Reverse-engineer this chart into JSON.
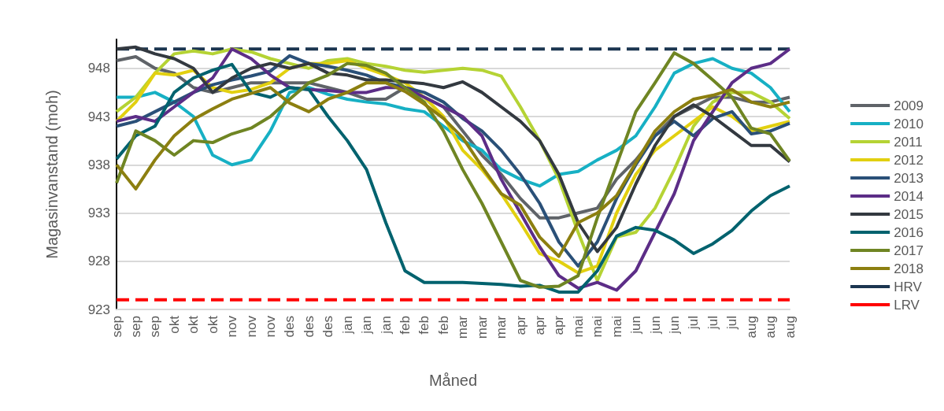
{
  "chart_data": {
    "type": "line",
    "xlabel": "Måned",
    "ylabel": "Magasinvanstand (moh)",
    "categories": [
      "sep",
      "sep",
      "sep",
      "okt",
      "okt",
      "okt",
      "nov",
      "nov",
      "nov",
      "des",
      "des",
      "des",
      "jan",
      "jan",
      "jan",
      "feb",
      "feb",
      "feb",
      "mar",
      "mar",
      "mar",
      "apr",
      "apr",
      "apr",
      "mai",
      "mai",
      "mai",
      "jun",
      "jun",
      "jun",
      "jul",
      "jul",
      "jul",
      "aug",
      "aug",
      "aug"
    ],
    "ylim": [
      923,
      951
    ],
    "yticks": [
      923,
      928,
      933,
      938,
      943,
      948
    ],
    "grid": "y",
    "legend": "right",
    "marker": "none",
    "line_style": "solid",
    "series": [
      {
        "name": "2009",
        "color": "#5f6368",
        "values": [
          948.8,
          949.2,
          948,
          947.5,
          946,
          945.5,
          946,
          946.5,
          946.5,
          946.5,
          946.5,
          946,
          945.5,
          944.8,
          944.8,
          946,
          945,
          944,
          941.5,
          939,
          937,
          934.5,
          932.5,
          932.5,
          933,
          933.5,
          936.5,
          938.5,
          941,
          943,
          944,
          945,
          945,
          944.5,
          944.5,
          945
        ]
      },
      {
        "name": "2010",
        "color": "#17b0c4",
        "values": [
          945,
          945,
          945.5,
          944.5,
          943,
          939,
          938,
          938.5,
          941.5,
          945.5,
          946,
          945.3,
          944.8,
          944.5,
          944.3,
          943.8,
          943.5,
          942,
          940.5,
          939.5,
          937.5,
          936.5,
          935.8,
          937,
          937.3,
          938.5,
          939.5,
          941,
          944,
          947.5,
          948.5,
          949,
          948,
          947.5,
          946,
          943.5
        ]
      },
      {
        "name": "2011",
        "color": "#b5d334",
        "values": [
          943.5,
          945,
          947.5,
          949.5,
          949.8,
          949.5,
          950,
          949.7,
          949,
          948.5,
          948,
          948.8,
          949,
          948.5,
          948.2,
          947.8,
          947.6,
          947.8,
          948,
          947.8,
          947.2,
          944,
          940.5,
          936.5,
          931,
          926,
          930.5,
          931,
          933.5,
          937.5,
          942,
          944.5,
          945.5,
          945.5,
          944.5,
          942.8
        ]
      },
      {
        "name": "2012",
        "color": "#e2d010",
        "values": [
          942.5,
          944.5,
          947.5,
          947.3,
          947.8,
          946,
          945.5,
          945.8,
          946.5,
          948,
          948.5,
          948.5,
          948.8,
          948,
          947.3,
          946.5,
          945,
          943,
          939.5,
          937.5,
          935,
          932,
          928.8,
          928,
          926.8,
          927.5,
          933,
          937,
          939.5,
          941,
          942.5,
          944,
          943,
          941.5,
          942,
          942.5
        ]
      },
      {
        "name": "2013",
        "color": "#2a5078",
        "values": [
          942,
          942.5,
          943.5,
          944.5,
          945.5,
          946.3,
          946.8,
          947.2,
          947.7,
          949.3,
          948.5,
          948.2,
          947.8,
          947.3,
          946.5,
          946,
          945.5,
          944.5,
          942.8,
          941.5,
          939.5,
          937,
          934,
          930,
          927.5,
          930,
          934.5,
          938,
          941,
          942.5,
          941,
          942.8,
          943.5,
          941.2,
          941.5,
          942.3
        ]
      },
      {
        "name": "2014",
        "color": "#5c2d87",
        "values": [
          942.5,
          943,
          942.5,
          944,
          945.5,
          947,
          950,
          949,
          947.3,
          946,
          945.8,
          945.7,
          945.5,
          945.5,
          946,
          946,
          945,
          944,
          943,
          941,
          936.5,
          933,
          929.5,
          926.5,
          925.2,
          925.8,
          925,
          927,
          931,
          935,
          940.5,
          943.5,
          946.5,
          948,
          948.5,
          950
        ]
      },
      {
        "name": "2015",
        "color": "#333940",
        "values": [
          950,
          950.2,
          949.5,
          949,
          948,
          945.5,
          947,
          948,
          948.5,
          948,
          948.5,
          947.5,
          947.3,
          946.8,
          946.8,
          946.6,
          946.4,
          946,
          946.6,
          945.5,
          944,
          942.5,
          940.5,
          937,
          932,
          929,
          931.5,
          936,
          940,
          943,
          944.2,
          943,
          941.5,
          940,
          940,
          938.3
        ]
      },
      {
        "name": "2016",
        "color": "#00626e",
        "values": [
          938.6,
          941,
          942,
          945.5,
          947,
          947.8,
          948.4,
          945.5,
          945,
          946,
          945.8,
          943,
          940.5,
          937.5,
          932,
          927,
          925.8,
          925.8,
          925.8,
          925.7,
          925.6,
          925.4,
          925.5,
          924.8,
          924.8,
          927,
          930.6,
          931.5,
          931.2,
          930.2,
          928.8,
          929.8,
          931.2,
          933.2,
          934.8,
          935.8
        ]
      },
      {
        "name": "2017",
        "color": "#6f8523",
        "values": [
          936.1,
          941.5,
          940.5,
          939,
          940.5,
          940.3,
          941.2,
          941.8,
          943,
          944.8,
          946.5,
          947.3,
          948.5,
          948.3,
          947.5,
          946,
          944.5,
          941.5,
          937.5,
          934,
          930,
          926,
          925.3,
          925.4,
          926.5,
          932.5,
          938,
          943.5,
          946.5,
          949.6,
          948.5,
          946.8,
          945,
          941.8,
          941.2,
          938.4
        ]
      },
      {
        "name": "2018",
        "color": "#8c7f10",
        "values": [
          938,
          935.5,
          938.5,
          941,
          942.7,
          943.8,
          944.8,
          945.4,
          946,
          944.4,
          943.5,
          944.8,
          945.5,
          946.5,
          946.5,
          945.6,
          944.3,
          942.8,
          940.8,
          937.8,
          935,
          933.8,
          930.5,
          928.5,
          932,
          933,
          934.8,
          938.2,
          941.5,
          943.5,
          944.8,
          945.2,
          945.8,
          944.5,
          944,
          944.5
        ]
      },
      {
        "name": "HRV",
        "color": "#1b3550",
        "line_style": "dashed",
        "values": [
          950,
          950,
          950,
          950,
          950,
          950,
          950,
          950,
          950,
          950,
          950,
          950,
          950,
          950,
          950,
          950,
          950,
          950,
          950,
          950,
          950,
          950,
          950,
          950,
          950,
          950,
          950,
          950,
          950,
          950,
          950,
          950,
          950,
          950,
          950,
          950
        ]
      },
      {
        "name": "LRV",
        "color": "#ff0000",
        "line_style": "dashed",
        "values": [
          924,
          924,
          924,
          924,
          924,
          924,
          924,
          924,
          924,
          924,
          924,
          924,
          924,
          924,
          924,
          924,
          924,
          924,
          924,
          924,
          924,
          924,
          924,
          924,
          924,
          924,
          924,
          924,
          924,
          924,
          924,
          924,
          924,
          924,
          924,
          924
        ]
      }
    ]
  }
}
